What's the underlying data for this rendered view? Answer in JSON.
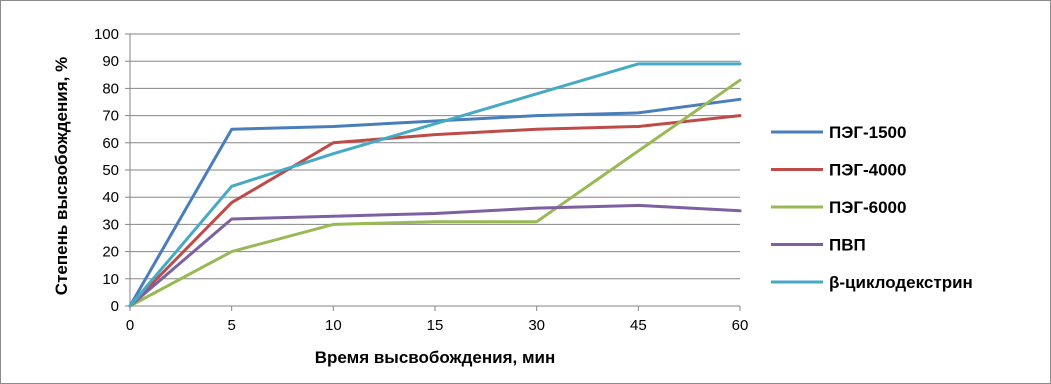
{
  "chart_data": {
    "type": "line",
    "title": "",
    "xlabel": "Время высвобождения, мин",
    "ylabel": "Степень высвобождения, %",
    "categories": [
      "0",
      "5",
      "10",
      "15",
      "30",
      "45",
      "60"
    ],
    "ylim": [
      0,
      100
    ],
    "yticks": [
      0,
      10,
      20,
      30,
      40,
      50,
      60,
      70,
      80,
      90,
      100
    ],
    "grid": true,
    "legend_position": "right",
    "series": [
      {
        "name": "ПЭГ-1500",
        "color": "#4a7ebb",
        "values": [
          0,
          65,
          66,
          68,
          70,
          71,
          76
        ]
      },
      {
        "name": "ПЭГ-4000",
        "color": "#be4b48",
        "values": [
          0,
          38,
          60,
          63,
          65,
          66,
          70
        ]
      },
      {
        "name": "ПЭГ-6000",
        "color": "#98b954",
        "values": [
          0,
          20,
          30,
          31,
          31,
          57,
          83
        ]
      },
      {
        "name": "ПВП",
        "color": "#7d60a0",
        "values": [
          0,
          32,
          33,
          34,
          36,
          37,
          35
        ]
      },
      {
        "name": "β-циклодекстрин",
        "color": "#46aac5",
        "values": [
          0,
          44,
          56,
          67,
          78,
          89,
          89
        ]
      }
    ]
  }
}
